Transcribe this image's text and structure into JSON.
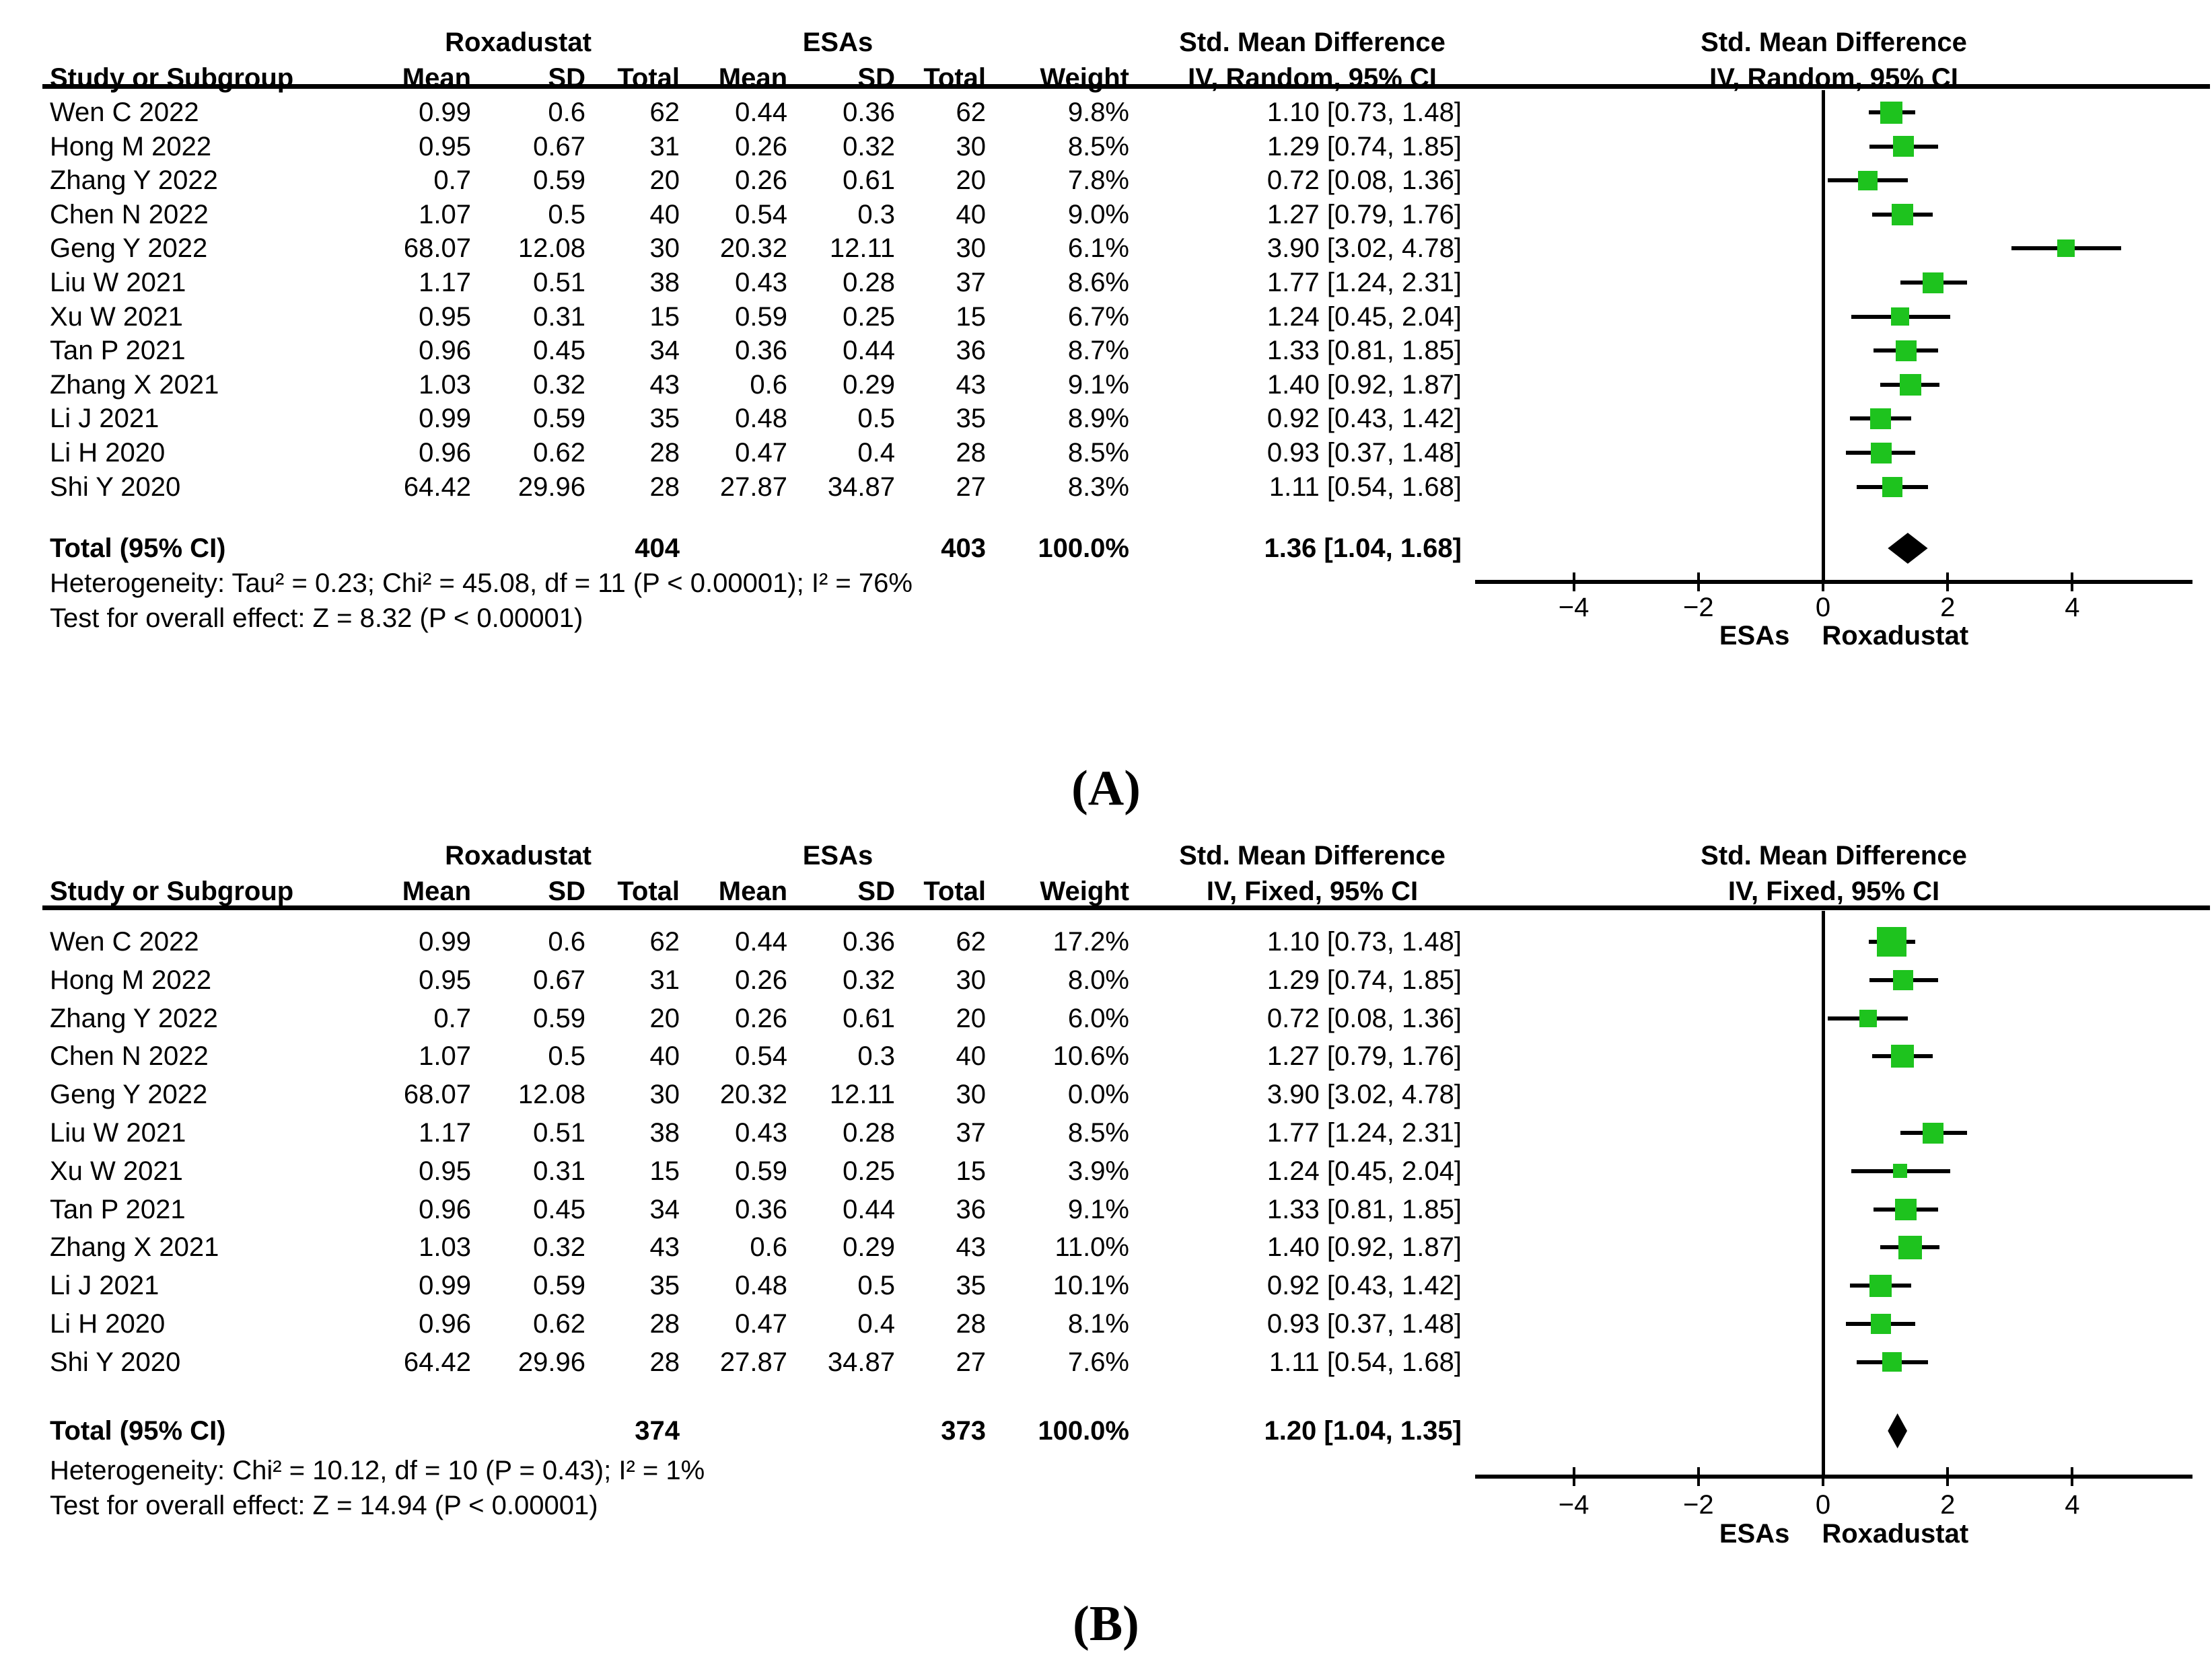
{
  "figure_title": "Forest plots of standardized mean difference, Roxadustat vs ESAs",
  "marker_color": "#1EC31E",
  "chart_data": [
    {
      "type": "forest",
      "panel_label": "(A)",
      "model": "Random",
      "header": {
        "study": "Study or Subgroup",
        "group1": "Roxadustat",
        "group2": "ESAs",
        "mean": "Mean",
        "sd": "SD",
        "total": "Total",
        "weight": "Weight",
        "smd": "Std. Mean Difference",
        "ci_method": "IV, Random, 95% CI"
      },
      "studies": [
        {
          "name": "Wen C 2022",
          "mean1": "0.99",
          "sd1": "0.6",
          "total1": "62",
          "mean2": "0.44",
          "sd2": "0.36",
          "total2": "62",
          "weight": "9.8%",
          "weight_value": 9.8,
          "smd": 1.1,
          "lo": 0.73,
          "hi": 1.48,
          "ci_text": "1.10 [0.73, 1.48]"
        },
        {
          "name": "Hong M 2022",
          "mean1": "0.95",
          "sd1": "0.67",
          "total1": "31",
          "mean2": "0.26",
          "sd2": "0.32",
          "total2": "30",
          "weight": "8.5%",
          "weight_value": 8.5,
          "smd": 1.29,
          "lo": 0.74,
          "hi": 1.85,
          "ci_text": "1.29 [0.74, 1.85]"
        },
        {
          "name": "Zhang Y 2022",
          "mean1": "0.7",
          "sd1": "0.59",
          "total1": "20",
          "mean2": "0.26",
          "sd2": "0.61",
          "total2": "20",
          "weight": "7.8%",
          "weight_value": 7.8,
          "smd": 0.72,
          "lo": 0.08,
          "hi": 1.36,
          "ci_text": "0.72 [0.08, 1.36]"
        },
        {
          "name": "Chen N 2022",
          "mean1": "1.07",
          "sd1": "0.5",
          "total1": "40",
          "mean2": "0.54",
          "sd2": "0.3",
          "total2": "40",
          "weight": "9.0%",
          "weight_value": 9.0,
          "smd": 1.27,
          "lo": 0.79,
          "hi": 1.76,
          "ci_text": "1.27 [0.79, 1.76]"
        },
        {
          "name": "Geng Y 2022",
          "mean1": "68.07",
          "sd1": "12.08",
          "total1": "30",
          "mean2": "20.32",
          "sd2": "12.11",
          "total2": "30",
          "weight": "6.1%",
          "weight_value": 6.1,
          "smd": 3.9,
          "lo": 3.02,
          "hi": 4.78,
          "ci_text": "3.90 [3.02, 4.78]"
        },
        {
          "name": "Liu W 2021",
          "mean1": "1.17",
          "sd1": "0.51",
          "total1": "38",
          "mean2": "0.43",
          "sd2": "0.28",
          "total2": "37",
          "weight": "8.6%",
          "weight_value": 8.6,
          "smd": 1.77,
          "lo": 1.24,
          "hi": 2.31,
          "ci_text": "1.77 [1.24, 2.31]"
        },
        {
          "name": "Xu W 2021",
          "mean1": "0.95",
          "sd1": "0.31",
          "total1": "15",
          "mean2": "0.59",
          "sd2": "0.25",
          "total2": "15",
          "weight": "6.7%",
          "weight_value": 6.7,
          "smd": 1.24,
          "lo": 0.45,
          "hi": 2.04,
          "ci_text": "1.24 [0.45, 2.04]"
        },
        {
          "name": "Tan P 2021",
          "mean1": "0.96",
          "sd1": "0.45",
          "total1": "34",
          "mean2": "0.36",
          "sd2": "0.44",
          "total2": "36",
          "weight": "8.7%",
          "weight_value": 8.7,
          "smd": 1.33,
          "lo": 0.81,
          "hi": 1.85,
          "ci_text": "1.33 [0.81, 1.85]"
        },
        {
          "name": "Zhang X 2021",
          "mean1": "1.03",
          "sd1": "0.32",
          "total1": "43",
          "mean2": "0.6",
          "sd2": "0.29",
          "total2": "43",
          "weight": "9.1%",
          "weight_value": 9.1,
          "smd": 1.4,
          "lo": 0.92,
          "hi": 1.87,
          "ci_text": "1.40 [0.92, 1.87]"
        },
        {
          "name": "Li J 2021",
          "mean1": "0.99",
          "sd1": "0.59",
          "total1": "35",
          "mean2": "0.48",
          "sd2": "0.5",
          "total2": "35",
          "weight": "8.9%",
          "weight_value": 8.9,
          "smd": 0.92,
          "lo": 0.43,
          "hi": 1.42,
          "ci_text": "0.92 [0.43, 1.42]"
        },
        {
          "name": "Li H 2020",
          "mean1": "0.96",
          "sd1": "0.62",
          "total1": "28",
          "mean2": "0.47",
          "sd2": "0.4",
          "total2": "28",
          "weight": "8.5%",
          "weight_value": 8.5,
          "smd": 0.93,
          "lo": 0.37,
          "hi": 1.48,
          "ci_text": "0.93 [0.37, 1.48]"
        },
        {
          "name": "Shi Y 2020",
          "mean1": "64.42",
          "sd1": "29.96",
          "total1": "28",
          "mean2": "27.87",
          "sd2": "34.87",
          "total2": "27",
          "weight": "8.3%",
          "weight_value": 8.3,
          "smd": 1.11,
          "lo": 0.54,
          "hi": 1.68,
          "ci_text": "1.11 [0.54, 1.68]"
        }
      ],
      "total": {
        "label": "Total (95% CI)",
        "total1": "404",
        "total2": "403",
        "weight": "100.0%",
        "smd": 1.36,
        "lo": 1.04,
        "hi": 1.68,
        "ci_text": "1.36 [1.04, 1.68]"
      },
      "heterogeneity": "Heterogeneity: Tau² = 0.23; Chi² = 45.08, df = 11 (P < 0.00001); I² = 76%",
      "overall": "Test for overall effect: Z = 8.32 (P < 0.00001)",
      "axis": {
        "ticks": [
          -4,
          -2,
          0,
          2,
          4
        ],
        "tick_labels": [
          "−4",
          "−2",
          "0",
          "2",
          "4"
        ],
        "xmin": -5.6,
        "xmax": 5.95,
        "favors_left": "ESAs",
        "favors_right": "Roxadustat"
      }
    },
    {
      "type": "forest",
      "panel_label": "(B)",
      "model": "Fixed",
      "header": {
        "study": "Study or Subgroup",
        "group1": "Roxadustat",
        "group2": "ESAs",
        "mean": "Mean",
        "sd": "SD",
        "total": "Total",
        "weight": "Weight",
        "smd": "Std. Mean Difference",
        "ci_method": "IV, Fixed, 95% CI"
      },
      "studies": [
        {
          "name": "Wen C 2022",
          "mean1": "0.99",
          "sd1": "0.6",
          "total1": "62",
          "mean2": "0.44",
          "sd2": "0.36",
          "total2": "62",
          "weight": "17.2%",
          "weight_value": 17.2,
          "smd": 1.1,
          "lo": 0.73,
          "hi": 1.48,
          "ci_text": "1.10 [0.73, 1.48]"
        },
        {
          "name": "Hong M 2022",
          "mean1": "0.95",
          "sd1": "0.67",
          "total1": "31",
          "mean2": "0.26",
          "sd2": "0.32",
          "total2": "30",
          "weight": "8.0%",
          "weight_value": 8.0,
          "smd": 1.29,
          "lo": 0.74,
          "hi": 1.85,
          "ci_text": "1.29 [0.74, 1.85]"
        },
        {
          "name": "Zhang Y 2022",
          "mean1": "0.7",
          "sd1": "0.59",
          "total1": "20",
          "mean2": "0.26",
          "sd2": "0.61",
          "total2": "20",
          "weight": "6.0%",
          "weight_value": 6.0,
          "smd": 0.72,
          "lo": 0.08,
          "hi": 1.36,
          "ci_text": "0.72 [0.08, 1.36]"
        },
        {
          "name": "Chen N 2022",
          "mean1": "1.07",
          "sd1": "0.5",
          "total1": "40",
          "mean2": "0.54",
          "sd2": "0.3",
          "total2": "40",
          "weight": "10.6%",
          "weight_value": 10.6,
          "smd": 1.27,
          "lo": 0.79,
          "hi": 1.76,
          "ci_text": "1.27 [0.79, 1.76]"
        },
        {
          "name": "Geng Y 2022",
          "mean1": "68.07",
          "sd1": "12.08",
          "total1": "30",
          "mean2": "20.32",
          "sd2": "12.11",
          "total2": "30",
          "weight": "0.0%",
          "weight_value": 0.0,
          "smd": 3.9,
          "lo": 3.02,
          "hi": 4.78,
          "ci_text": "3.90 [3.02, 4.78]"
        },
        {
          "name": "Liu W 2021",
          "mean1": "1.17",
          "sd1": "0.51",
          "total1": "38",
          "mean2": "0.43",
          "sd2": "0.28",
          "total2": "37",
          "weight": "8.5%",
          "weight_value": 8.5,
          "smd": 1.77,
          "lo": 1.24,
          "hi": 2.31,
          "ci_text": "1.77 [1.24, 2.31]"
        },
        {
          "name": "Xu W 2021",
          "mean1": "0.95",
          "sd1": "0.31",
          "total1": "15",
          "mean2": "0.59",
          "sd2": "0.25",
          "total2": "15",
          "weight": "3.9%",
          "weight_value": 3.9,
          "smd": 1.24,
          "lo": 0.45,
          "hi": 2.04,
          "ci_text": "1.24 [0.45, 2.04]"
        },
        {
          "name": "Tan P 2021",
          "mean1": "0.96",
          "sd1": "0.45",
          "total1": "34",
          "mean2": "0.36",
          "sd2": "0.44",
          "total2": "36",
          "weight": "9.1%",
          "weight_value": 9.1,
          "smd": 1.33,
          "lo": 0.81,
          "hi": 1.85,
          "ci_text": "1.33 [0.81, 1.85]"
        },
        {
          "name": "Zhang X 2021",
          "mean1": "1.03",
          "sd1": "0.32",
          "total1": "43",
          "mean2": "0.6",
          "sd2": "0.29",
          "total2": "43",
          "weight": "11.0%",
          "weight_value": 11.0,
          "smd": 1.4,
          "lo": 0.92,
          "hi": 1.87,
          "ci_text": "1.40 [0.92, 1.87]"
        },
        {
          "name": "Li J 2021",
          "mean1": "0.99",
          "sd1": "0.59",
          "total1": "35",
          "mean2": "0.48",
          "sd2": "0.5",
          "total2": "35",
          "weight": "10.1%",
          "weight_value": 10.1,
          "smd": 0.92,
          "lo": 0.43,
          "hi": 1.42,
          "ci_text": "0.92 [0.43, 1.42]"
        },
        {
          "name": "Li H 2020",
          "mean1": "0.96",
          "sd1": "0.62",
          "total1": "28",
          "mean2": "0.47",
          "sd2": "0.4",
          "total2": "28",
          "weight": "8.1%",
          "weight_value": 8.1,
          "smd": 0.93,
          "lo": 0.37,
          "hi": 1.48,
          "ci_text": "0.93 [0.37, 1.48]"
        },
        {
          "name": "Shi Y 2020",
          "mean1": "64.42",
          "sd1": "29.96",
          "total1": "28",
          "mean2": "27.87",
          "sd2": "34.87",
          "total2": "27",
          "weight": "7.6%",
          "weight_value": 7.6,
          "smd": 1.11,
          "lo": 0.54,
          "hi": 1.68,
          "ci_text": "1.11 [0.54, 1.68]"
        }
      ],
      "total": {
        "label": "Total (95% CI)",
        "total1": "374",
        "total2": "373",
        "weight": "100.0%",
        "smd": 1.2,
        "lo": 1.04,
        "hi": 1.35,
        "ci_text": "1.20 [1.04, 1.35]"
      },
      "heterogeneity": "Heterogeneity: Chi² = 10.12, df = 10 (P = 0.43); I² = 1%",
      "overall": "Test for overall effect: Z = 14.94 (P < 0.00001)",
      "axis": {
        "ticks": [
          -4,
          -2,
          0,
          2,
          4
        ],
        "tick_labels": [
          "−4",
          "−2",
          "0",
          "2",
          "4"
        ],
        "xmin": -5.6,
        "xmax": 5.95,
        "favors_left": "ESAs",
        "favors_right": "Roxadustat"
      }
    }
  ]
}
